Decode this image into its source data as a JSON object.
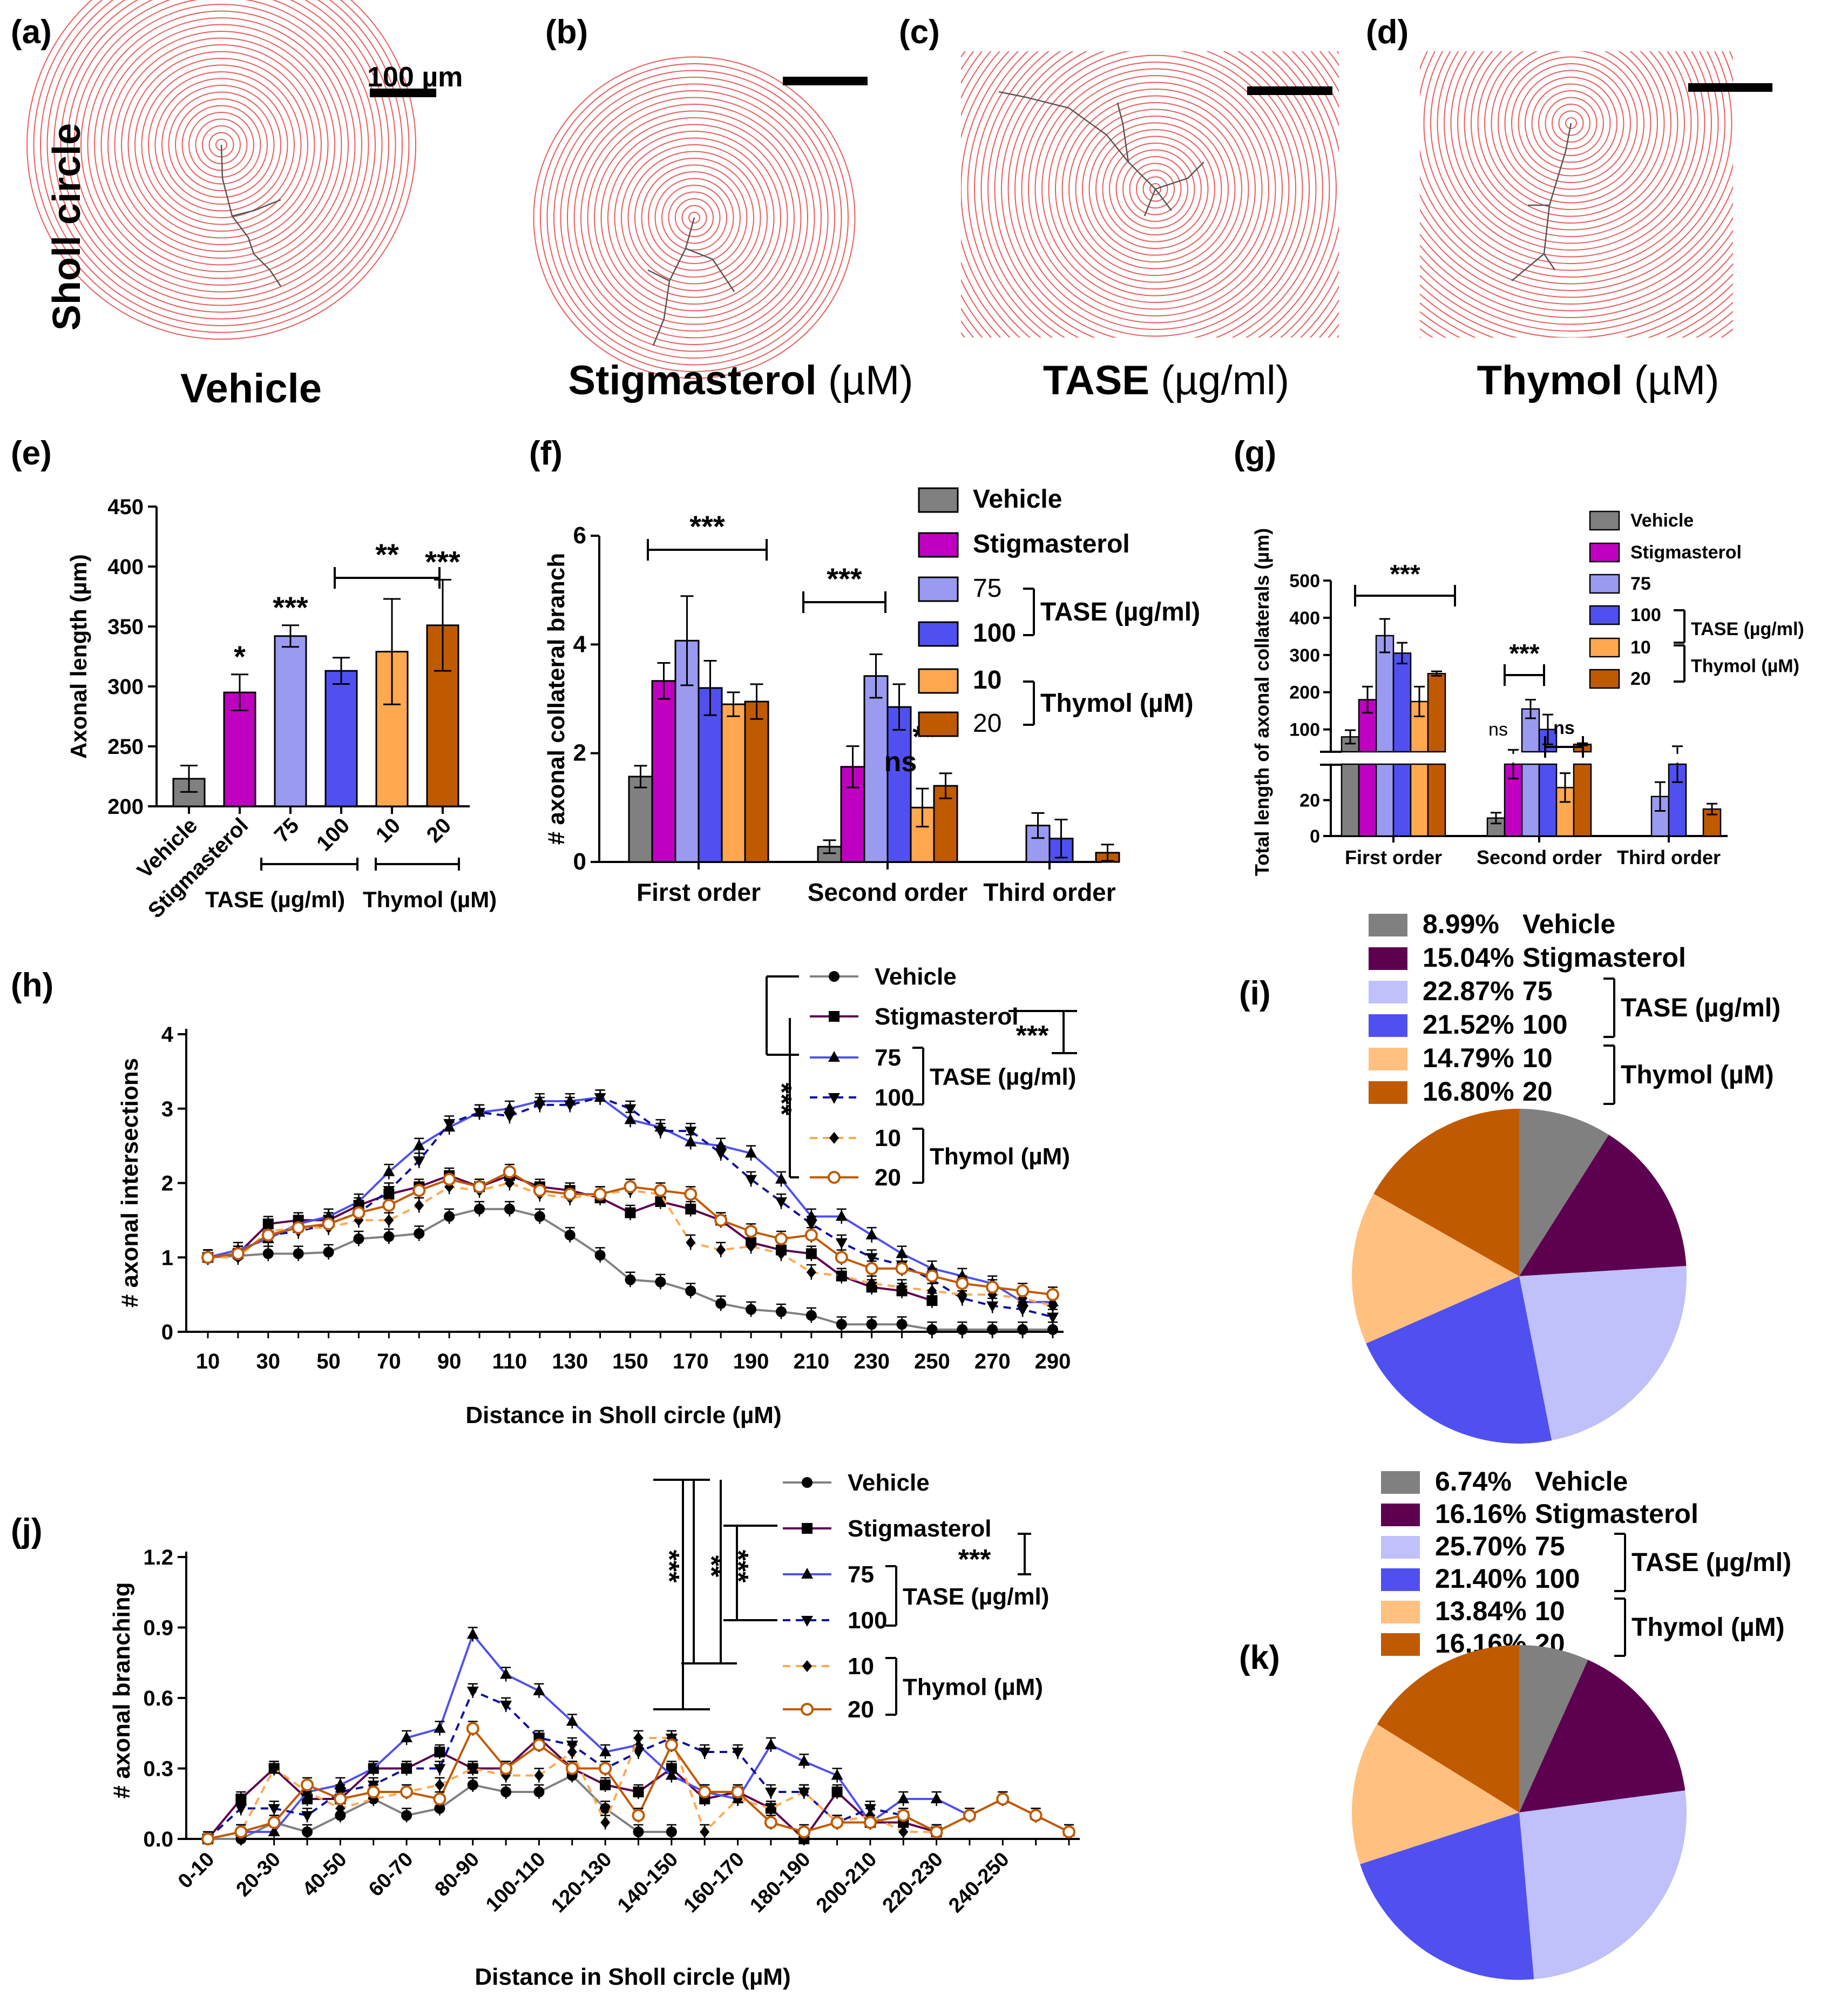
{
  "colors": {
    "vehicle": "#808080",
    "stigmasterol": "#C000C0",
    "stigmasterol_dark": "#5E0050",
    "tase75": "#9A9AF0",
    "tase75_pie": "#C0C0FA",
    "tase100": "#5050F0",
    "thymol10": "#FFA850",
    "thymol10_pie": "#FFC080",
    "thymol20": "#C05A00",
    "sholl_red": "#E84040",
    "trace": "#555555"
  },
  "panels": {
    "a": {
      "letter": "(a)",
      "side_label": "Sholl circle",
      "scale_label": "100 µm",
      "name": "Vehicle",
      "unit": ""
    },
    "b": {
      "letter": "(b)",
      "name": "Stigmasterol",
      "unit": " (µM)"
    },
    "c": {
      "letter": "(c)",
      "name": "TASE",
      "unit": " (µg/ml)"
    },
    "d": {
      "letter": "(d)",
      "name": "Thymol",
      "unit": " (µM)"
    }
  },
  "chart_data": [
    {
      "id": "e",
      "letter": "(e)",
      "type": "bar",
      "ylabel": "Axonal length (µm)",
      "ylim": [
        200,
        450
      ],
      "yticks": [
        200,
        250,
        300,
        350,
        400,
        450
      ],
      "categories": [
        "Vehicle",
        "Stigmasterol",
        "75",
        "100",
        "10",
        "20"
      ],
      "values": [
        223,
        295,
        342,
        313,
        329,
        351
      ],
      "errors": [
        11,
        15,
        9,
        11,
        44,
        38
      ],
      "colors": [
        "vehicle",
        "stigmasterol",
        "tase75",
        "tase100",
        "thymol10",
        "thymol20"
      ],
      "annotations": [
        "",
        "*",
        "***",
        "",
        "",
        "***"
      ],
      "bracket_label": "**",
      "group_labels": [
        "TASE (µg/ml)",
        "Thymol (µM)"
      ]
    },
    {
      "id": "f",
      "letter": "(f)",
      "type": "bar",
      "ylabel": "# axonal collateral  branch",
      "ylim": [
        0,
        6
      ],
      "yticks": [
        0,
        2,
        4,
        6
      ],
      "categories": [
        "First order",
        "Second order",
        "Third order"
      ],
      "series": [
        {
          "name": "Vehicle",
          "color": "vehicle",
          "values": [
            1.57,
            0.28,
            null
          ],
          "errors": [
            0.2,
            0.12,
            0
          ]
        },
        {
          "name": "Stigmasterol",
          "color": "stigmasterol",
          "values": [
            3.33,
            1.75,
            null
          ],
          "errors": [
            0.33,
            0.38,
            0
          ]
        },
        {
          "name": "75",
          "color": "tase75",
          "values": [
            4.07,
            3.42,
            0.67
          ],
          "errors": [
            0.82,
            0.4,
            0.23
          ]
        },
        {
          "name": "100",
          "color": "tase100",
          "values": [
            3.2,
            2.85,
            0.43
          ],
          "errors": [
            0.5,
            0.42,
            0.35
          ]
        },
        {
          "name": "10",
          "color": "thymol10",
          "values": [
            2.9,
            1.0,
            null
          ],
          "errors": [
            0.22,
            0.35,
            0
          ]
        },
        {
          "name": "20",
          "color": "thymol20",
          "values": [
            2.95,
            1.4,
            0.17
          ],
          "errors": [
            0.32,
            0.23,
            0.15
          ]
        }
      ],
      "sig": [
        "***",
        "***",
        "ns",
        "**"
      ],
      "group_labels": [
        "TASE (µg/ml)",
        "Thymol (µM)"
      ]
    },
    {
      "id": "g",
      "letter": "(g)",
      "type": "bar",
      "ylabel": "Total length of axonal collaterals (µm)",
      "yticks_upper": [
        100,
        200,
        300,
        400,
        500
      ],
      "yticks_lower": [
        0,
        20
      ],
      "categories": [
        "First order",
        "Second order",
        "Third order"
      ],
      "series": [
        {
          "name": "Vehicle",
          "color": "vehicle",
          "values": [
            80,
            10,
            null
          ],
          "errors": [
            18,
            3,
            0
          ]
        },
        {
          "name": "Stigmasterol",
          "color": "stigmasterol",
          "values": [
            180,
            40,
            null
          ],
          "errors": [
            35,
            8,
            0
          ]
        },
        {
          "name": "75",
          "color": "tase75",
          "values": [
            352,
            155,
            22
          ],
          "errors": [
            45,
            25,
            8
          ]
        },
        {
          "name": "100",
          "color": "tase100",
          "values": [
            305,
            100,
            40
          ],
          "errors": [
            28,
            40,
            10
          ]
        },
        {
          "name": "10",
          "color": "thymol10",
          "values": [
            175,
            27,
            null
          ],
          "errors": [
            40,
            8,
            0
          ]
        },
        {
          "name": "20",
          "color": "thymol20",
          "values": [
            250,
            60,
            15
          ],
          "errors": [
            6,
            3,
            3
          ]
        }
      ],
      "sig": [
        "***",
        "***",
        "ns",
        "ns"
      ],
      "group_labels": [
        "TASE (µg/ml)",
        "Thymol (µM)"
      ]
    },
    {
      "id": "h",
      "letter": "(h)",
      "type": "line",
      "xlabel": "Distance in Sholl circle (µM)",
      "ylabel": "# axonal intersections",
      "ylim": [
        0,
        4
      ],
      "yticks": [
        0,
        1,
        2,
        3,
        4
      ],
      "xticks": [
        10,
        30,
        50,
        70,
        90,
        110,
        130,
        150,
        170,
        190,
        210,
        230,
        250,
        270,
        290
      ],
      "x": [
        10,
        20,
        30,
        40,
        50,
        60,
        70,
        80,
        90,
        100,
        110,
        120,
        130,
        140,
        150,
        160,
        170,
        180,
        190,
        200,
        210,
        220,
        230,
        240,
        250,
        260,
        270,
        280,
        290
      ],
      "series": [
        {
          "name": "Vehicle",
          "values": [
            1.0,
            1.02,
            1.05,
            1.05,
            1.07,
            1.25,
            1.28,
            1.32,
            1.55,
            1.65,
            1.65,
            1.55,
            1.3,
            1.03,
            0.7,
            0.67,
            0.55,
            0.38,
            0.3,
            0.27,
            0.22,
            0.1,
            0.1,
            0.1,
            0.03,
            0.03,
            0.03,
            0.03,
            0.03
          ]
        },
        {
          "name": "Stigmasterol",
          "values": [
            1.0,
            1.05,
            1.45,
            1.5,
            1.5,
            1.7,
            1.85,
            1.95,
            2.1,
            1.95,
            2.1,
            1.95,
            1.9,
            1.8,
            1.6,
            1.75,
            1.65,
            1.5,
            1.2,
            1.1,
            1.05,
            0.75,
            0.6,
            0.55,
            0.42,
            null,
            null,
            null,
            null
          ]
        },
        {
          "name": "75",
          "values": [
            1.0,
            1.1,
            1.25,
            1.45,
            1.55,
            1.75,
            2.15,
            2.5,
            2.75,
            2.95,
            3.0,
            3.1,
            3.1,
            3.15,
            2.85,
            2.75,
            2.55,
            2.5,
            2.4,
            2.05,
            1.55,
            1.55,
            1.3,
            1.05,
            0.85,
            0.75,
            0.65,
            0.4,
            0.4
          ]
        },
        {
          "name": "100",
          "values": [
            1.0,
            1.05,
            1.3,
            1.35,
            1.45,
            1.6,
            1.9,
            2.3,
            2.8,
            2.95,
            2.9,
            3.05,
            3.05,
            3.15,
            3.0,
            2.7,
            2.7,
            2.4,
            2.05,
            1.75,
            1.45,
            1.2,
            1.0,
            0.9,
            0.7,
            0.45,
            0.35,
            0.3,
            0.2
          ]
        },
        {
          "name": "10",
          "values": [
            1.0,
            1.0,
            1.35,
            1.4,
            1.4,
            1.5,
            1.5,
            1.7,
            1.95,
            1.9,
            2.0,
            1.85,
            1.8,
            1.85,
            1.9,
            1.85,
            1.2,
            1.1,
            1.15,
            1.05,
            0.8,
            0.75,
            0.65,
            0.6,
            0.55,
            0.5,
            0.5,
            0.45,
            0.35
          ]
        },
        {
          "name": "20",
          "values": [
            1.0,
            1.05,
            1.3,
            1.4,
            1.45,
            1.6,
            1.7,
            1.9,
            2.05,
            1.95,
            2.15,
            1.9,
            1.85,
            1.85,
            1.95,
            1.9,
            1.85,
            1.5,
            1.35,
            1.25,
            1.3,
            1.0,
            0.85,
            0.85,
            0.75,
            0.65,
            0.6,
            0.55,
            0.5
          ]
        }
      ],
      "legend": [
        "Vehicle",
        "Stigmasterol",
        "75",
        "100",
        "10",
        "20"
      ],
      "sig": [
        "***",
        "***"
      ],
      "group_labels": [
        "TASE (µg/ml)",
        "Thymol (µM)"
      ]
    },
    {
      "id": "i",
      "letter": "(i)",
      "type": "pie",
      "labels": [
        "Vehicle",
        "Stigmasterol",
        "75",
        "100",
        "10",
        "20"
      ],
      "values": [
        8.99,
        15.04,
        22.87,
        21.52,
        14.79,
        16.8
      ],
      "percent_labels": [
        "8.99%",
        "15.04%",
        "22.87%",
        "21.52%",
        "14.79%",
        "16.80%"
      ],
      "group_labels": [
        "TASE (µg/ml)",
        "Thymol (µM)"
      ]
    },
    {
      "id": "j",
      "letter": "(j)",
      "type": "line",
      "xlabel": "Distance in Sholl circle (µM)",
      "ylabel": "# axonal branching",
      "ylim": [
        0,
        1.2
      ],
      "yticks": [
        "0.0",
        "0.3",
        "0.6",
        "0.9",
        "1.2"
      ],
      "xticks": [
        "0-10",
        "20-30",
        "40-50",
        "60-70",
        "80-90",
        "100-110",
        "120-130",
        "140-150",
        "160-170",
        "180-190",
        "200-210",
        "220-230",
        "240-250"
      ],
      "x": [
        "0-10",
        "10-20",
        "20-30",
        "30-40",
        "40-50",
        "50-60",
        "60-70",
        "70-80",
        "80-90",
        "90-100",
        "100-110",
        "110-120",
        "120-130",
        "130-140",
        "140-150",
        "150-160",
        "160-170",
        "170-180",
        "180-190",
        "190-200",
        "200-210",
        "210-220",
        "220-230",
        "230-240",
        "240-250",
        "250-260",
        "260-270"
      ],
      "series": [
        {
          "name": "Vehicle",
          "values": [
            0.0,
            0.0,
            0.07,
            0.03,
            0.1,
            0.17,
            0.1,
            0.13,
            0.23,
            0.2,
            0.2,
            0.27,
            0.13,
            0.03,
            0.03,
            null,
            null,
            null,
            null,
            null,
            null,
            null,
            null,
            null,
            null,
            null,
            null
          ]
        },
        {
          "name": "Stigmasterol",
          "values": [
            0.0,
            0.17,
            0.3,
            0.17,
            0.17,
            0.3,
            0.3,
            0.37,
            0.3,
            0.3,
            0.43,
            0.3,
            0.23,
            0.2,
            0.3,
            0.17,
            0.2,
            0.13,
            0.0,
            0.2,
            0.07,
            0.07,
            0.03,
            null,
            null,
            null,
            null
          ]
        },
        {
          "name": "75",
          "values": [
            0.0,
            0.03,
            0.03,
            0.2,
            0.23,
            0.3,
            0.43,
            0.47,
            0.87,
            0.7,
            0.63,
            0.5,
            0.37,
            0.4,
            0.27,
            0.2,
            0.17,
            0.4,
            0.33,
            0.27,
            0.07,
            0.17,
            0.17,
            0.1,
            0.17,
            0.1,
            0.03
          ]
        },
        {
          "name": "100",
          "values": [
            0.0,
            0.13,
            0.13,
            0.1,
            0.2,
            0.23,
            0.3,
            0.3,
            0.63,
            0.57,
            0.43,
            0.4,
            0.3,
            0.37,
            0.43,
            0.37,
            0.37,
            0.2,
            0.2,
            0.07,
            0.13,
            0.1,
            0.03,
            null,
            null,
            null,
            null
          ]
        },
        {
          "name": "10",
          "values": [
            0.0,
            0.03,
            0.3,
            0.2,
            0.13,
            0.17,
            0.2,
            0.23,
            0.3,
            0.27,
            0.27,
            0.37,
            0.07,
            0.43,
            0.43,
            0.03,
            0.17,
            0.13,
            0.2,
            0.07,
            0.1,
            0.03,
            0.03,
            null,
            null,
            null,
            null
          ]
        },
        {
          "name": "20",
          "values": [
            0.0,
            0.03,
            0.07,
            0.23,
            0.17,
            0.2,
            0.2,
            0.17,
            0.47,
            0.3,
            0.4,
            0.3,
            0.3,
            0.1,
            0.4,
            0.2,
            0.2,
            0.07,
            0.03,
            0.07,
            0.07,
            0.1,
            0.03,
            0.1,
            0.17,
            0.1,
            0.03
          ]
        }
      ],
      "legend": [
        "Vehicle",
        "Stigmasterol",
        "75",
        "100",
        "10",
        "20"
      ],
      "sig": [
        "***",
        "**",
        "***",
        "***"
      ],
      "group_labels": [
        "TASE (µg/ml)",
        "Thymol (µM)"
      ]
    },
    {
      "id": "k",
      "letter": "(k)",
      "type": "pie",
      "labels": [
        "Vehicle",
        "Stigmasterol",
        "75",
        "100",
        "10",
        "20"
      ],
      "values": [
        6.74,
        16.16,
        25.7,
        21.4,
        13.84,
        16.16
      ],
      "percent_labels": [
        "6.74%",
        "16.16%",
        "25.70%",
        "21.40%",
        "13.84%",
        "16.16%"
      ],
      "group_labels": [
        "TASE (µg/ml)",
        "Thymol (µM)"
      ]
    }
  ]
}
